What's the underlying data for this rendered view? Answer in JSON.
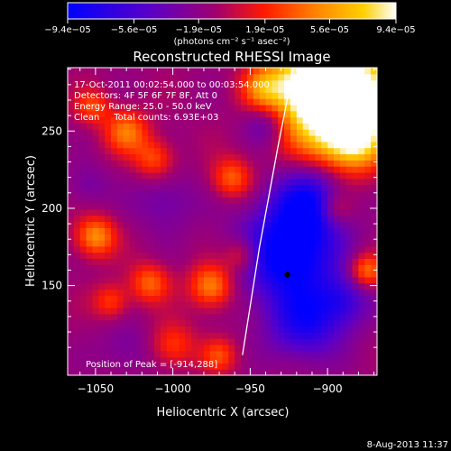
{
  "chart_data": {
    "type": "heatmap",
    "title": "Reconstructed RHESSI Image",
    "xlabel": "Heliocentric X (arcsec)",
    "ylabel": "Heliocentric Y (arcsec)",
    "xlim": [
      -1068,
      -868
    ],
    "ylim": [
      92,
      291
    ],
    "x_ticks": [
      -1050,
      -1000,
      -950,
      -900
    ],
    "x_tick_labels": [
      "−1050",
      "−1000",
      "−950",
      "−900"
    ],
    "y_ticks": [
      150,
      200,
      250
    ],
    "y_tick_labels": [
      "150",
      "200",
      "250"
    ],
    "colorbar": {
      "colormap": "blue-purple-red-orange-yellow-white",
      "range": [
        -9.4e-05,
        9.4e-05
      ],
      "ticks": [
        -9.4e-05,
        -5.6e-05,
        -1.9e-05,
        1.9e-05,
        5.6e-05,
        9.4e-05
      ],
      "tick_labels": [
        "−9.4e−05",
        "−5.6e−05",
        "−1.9e−05",
        "1.9e−05",
        "5.6e−05",
        "9.4e−05"
      ],
      "units": "(photons cm⁻² s⁻¹ asec⁻²)"
    },
    "annotations": [
      "17-Oct-2011 00:02:54.000 to 00:03:54.000",
      "Detectors: 4F 5F 6F 7F 8F, Att 0",
      "Energy Range: 25.0 - 50.0 keV",
      "Clean     Total counts: 6.93E+03"
    ],
    "peak": {
      "label": "Position of Peak = [-914,288]",
      "x": -914,
      "y": 288
    },
    "marker": {
      "x": -926,
      "y": 157
    },
    "limb": [
      [
        -955,
        105
      ],
      [
        -944,
        175
      ],
      [
        -932,
        240
      ],
      [
        -922,
        291
      ]
    ],
    "sources": [
      {
        "x": -900,
        "y": 260,
        "value": 9.4e-05,
        "s": 22
      },
      {
        "x": -878,
        "y": 280,
        "value": 9e-05,
        "s": 18
      },
      {
        "x": -915,
        "y": 282,
        "value": 8.5e-05,
        "s": 16
      },
      {
        "x": -882,
        "y": 245,
        "value": 7.5e-05,
        "s": 14
      },
      {
        "x": -942,
        "y": 278,
        "value": 5e-05,
        "s": 10
      },
      {
        "x": -1030,
        "y": 250,
        "value": 5.5e-05,
        "s": 10
      },
      {
        "x": -1012,
        "y": 232,
        "value": 4.5e-05,
        "s": 9
      },
      {
        "x": -1052,
        "y": 266,
        "value": 4e-05,
        "s": 8
      },
      {
        "x": -1050,
        "y": 182,
        "value": 6.5e-05,
        "s": 9
      },
      {
        "x": -1015,
        "y": 152,
        "value": 5e-05,
        "s": 9
      },
      {
        "x": -975,
        "y": 150,
        "value": 6.5e-05,
        "s": 10
      },
      {
        "x": -962,
        "y": 220,
        "value": 5e-05,
        "s": 9
      },
      {
        "x": -1040,
        "y": 140,
        "value": 4e-05,
        "s": 8
      },
      {
        "x": -1000,
        "y": 112,
        "value": 4e-05,
        "s": 10
      },
      {
        "x": -955,
        "y": 170,
        "value": 4.5e-05,
        "s": 8
      },
      {
        "x": -875,
        "y": 160,
        "value": 6e-05,
        "s": 8
      },
      {
        "x": -895,
        "y": 200,
        "value": 4e-05,
        "s": 8
      },
      {
        "x": -970,
        "y": 105,
        "value": 4e-05,
        "s": 8
      },
      {
        "x": -940,
        "y": 255,
        "value": -3.5e-05,
        "s": 10
      },
      {
        "x": -1005,
        "y": 205,
        "value": -2.5e-05,
        "s": 14
      },
      {
        "x": -1055,
        "y": 215,
        "value": -2e-05,
        "s": 10
      },
      {
        "x": -1030,
        "y": 110,
        "value": -2e-05,
        "s": 12
      },
      {
        "x": -925,
        "y": 170,
        "value": -9.4e-05,
        "s": 22
      },
      {
        "x": -912,
        "y": 205,
        "value": -7e-05,
        "s": 16
      },
      {
        "x": -915,
        "y": 125,
        "value": -6e-05,
        "s": 16
      },
      {
        "x": -890,
        "y": 140,
        "value": -4.5e-05,
        "s": 12
      }
    ]
  },
  "footer": {
    "date": "8-Aug-2013 11:37"
  }
}
